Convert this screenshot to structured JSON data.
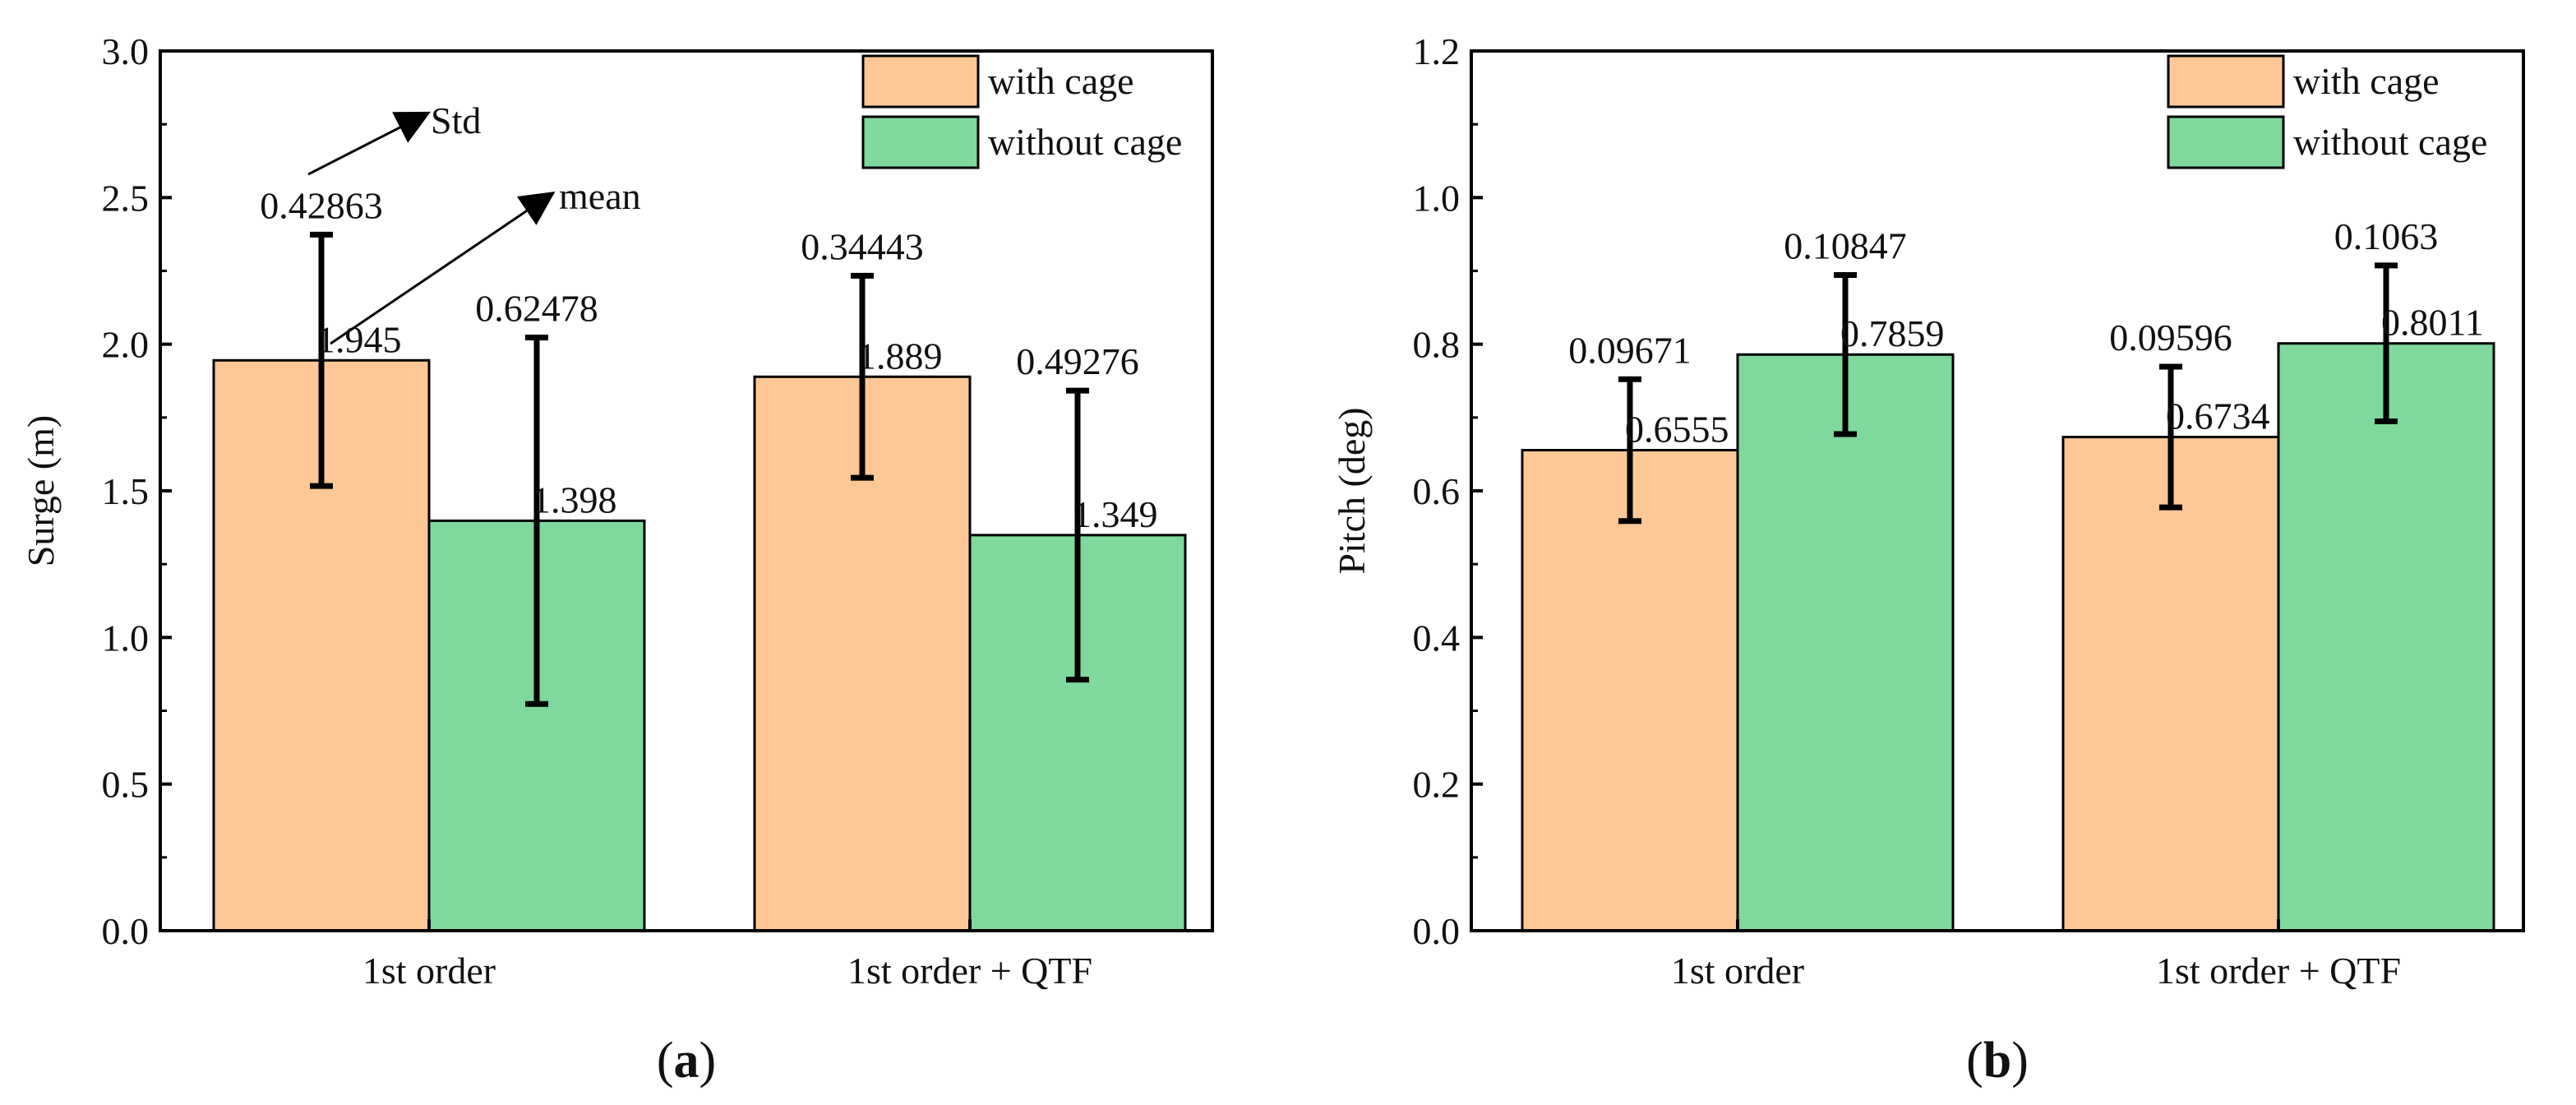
{
  "colors": {
    "with_cage": "#FDC896",
    "without_cage": "#7FD99C",
    "axis": "#000000",
    "error": "#000000"
  },
  "chart_data": [
    {
      "type": "bar",
      "panel_label": "a",
      "ylabel": "Surge (m)",
      "ylim": [
        0,
        3.0
      ],
      "yticks": [
        "0.0",
        "0.5",
        "1.0",
        "1.5",
        "2.0",
        "2.5",
        "3.0"
      ],
      "categories": [
        "1st order",
        "1st order + QTF"
      ],
      "legend_position": "top-right",
      "series": [
        {
          "name": "with cage",
          "values": [
            1.945,
            1.889
          ],
          "std": [
            0.42863,
            0.34443
          ],
          "value_labels": [
            "1.945",
            "1.889"
          ],
          "std_labels": [
            "0.42863",
            "0.34443"
          ]
        },
        {
          "name": "without cage",
          "values": [
            1.398,
            1.349
          ],
          "std": [
            0.62478,
            0.49276
          ],
          "value_labels": [
            "1.398",
            "1.349"
          ],
          "std_labels": [
            "0.62478",
            "0.49276"
          ]
        }
      ],
      "annotations": {
        "std": "Std",
        "mean": "mean"
      }
    },
    {
      "type": "bar",
      "panel_label": "b",
      "ylabel": "Pitch (deg)",
      "ylim": [
        0,
        1.2
      ],
      "yticks": [
        "0.0",
        "0.2",
        "0.4",
        "0.6",
        "0.8",
        "1.0",
        "1.2"
      ],
      "categories": [
        "1st order",
        "1st order + QTF"
      ],
      "legend_position": "top-right",
      "series": [
        {
          "name": "with cage",
          "values": [
            0.6555,
            0.6734
          ],
          "std": [
            0.09671,
            0.09596
          ],
          "value_labels": [
            "0.6555",
            "0.6734"
          ],
          "std_labels": [
            "0.09671",
            "0.09596"
          ]
        },
        {
          "name": "without cage",
          "values": [
            0.7859,
            0.8011
          ],
          "std": [
            0.10847,
            0.1063
          ],
          "value_labels": [
            "0.7859",
            "0.8011"
          ],
          "std_labels": [
            "0.10847",
            "0.1063"
          ]
        }
      ]
    }
  ]
}
